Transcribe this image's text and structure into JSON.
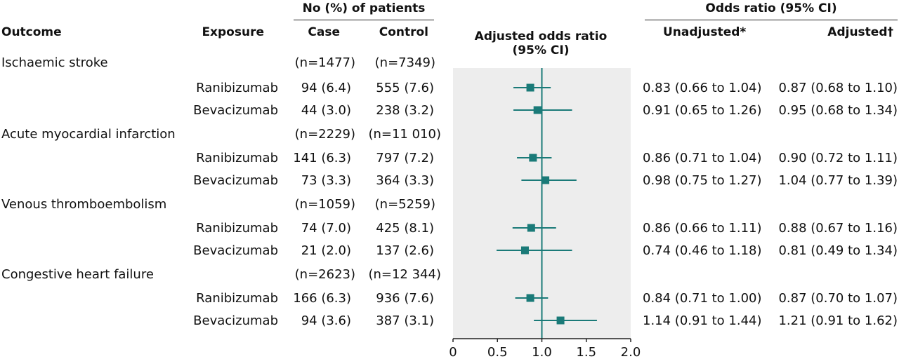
{
  "headers": {
    "outcome": "Outcome",
    "exposure": "Exposure",
    "patients_group": "No (%) of patients",
    "case": "Case",
    "control": "Control",
    "plot_title_line1": "Adjusted odds ratio",
    "plot_title_line2": "(95% CI)",
    "or_group": "Odds ratio (95% CI)",
    "unadjusted": "Unadjusted*",
    "adjusted": "Adjusted†"
  },
  "groups": [
    {
      "outcome": "Ischaemic stroke",
      "n_case": "(n=1477)",
      "n_control": "(n=7349)"
    },
    {
      "outcome": "Acute myocardial infarction",
      "n_case": "(n=2229)",
      "n_control": "(n=11 010)"
    },
    {
      "outcome": "Venous thromboembolism",
      "n_case": "(n=1059)",
      "n_control": "(n=5259)"
    },
    {
      "outcome": "Congestive heart failure",
      "n_case": "(n=2623)",
      "n_control": "(n=12 344)"
    }
  ],
  "rows": [
    {
      "exposure": "Ranibizumab",
      "case": "94 (6.4)",
      "control": "555 (7.6)",
      "unadjusted": "0.83 (0.66 to 1.04)",
      "adjusted": "0.87 (0.68 to 1.10)"
    },
    {
      "exposure": "Bevacizumab",
      "case": "44 (3.0)",
      "control": "238 (3.2)",
      "unadjusted": "0.91 (0.65 to 1.26)",
      "adjusted": "0.95 (0.68 to 1.34)"
    },
    {
      "exposure": "Ranibizumab",
      "case": "141 (6.3)",
      "control": "797 (7.2)",
      "unadjusted": "0.86 (0.71 to 1.04)",
      "adjusted": "0.90 (0.72 to 1.11)"
    },
    {
      "exposure": "Bevacizumab",
      "case": "73 (3.3)",
      "control": "364 (3.3)",
      "unadjusted": "0.98 (0.75 to 1.27)",
      "adjusted": "1.04 (0.77 to 1.39)"
    },
    {
      "exposure": "Ranibizumab",
      "case": "74 (7.0)",
      "control": "425 (8.1)",
      "unadjusted": "0.86 (0.66 to 1.11)",
      "adjusted": "0.88 (0.67 to 1.16)"
    },
    {
      "exposure": "Bevacizumab",
      "case": "21 (2.0)",
      "control": "137 (2.6)",
      "unadjusted": "0.74 (0.46 to 1.18)",
      "adjusted": "0.81 (0.49 to 1.34)"
    },
    {
      "exposure": "Ranibizumab",
      "case": "166 (6.3)",
      "control": "936 (7.6)",
      "unadjusted": "0.84 (0.71 to 1.00)",
      "adjusted": "0.87 (0.70 to 1.07)"
    },
    {
      "exposure": "Bevacizumab",
      "case": "94 (3.6)",
      "control": "387 (3.1)",
      "unadjusted": "1.14 (0.91 to 1.44)",
      "adjusted": "1.21 (0.91 to 1.62)"
    }
  ],
  "chart_data": {
    "type": "forest",
    "xlim": [
      0,
      2.0
    ],
    "xticks": [
      "0",
      "0.5",
      "1.0",
      "1.5",
      "2.0"
    ],
    "reference_line": 1.0,
    "colors": {
      "marker": "#1a7a78",
      "panel": "#ededed",
      "axis": "#222222"
    },
    "points": [
      {
        "estimate": 0.87,
        "lower": 0.68,
        "upper": 1.1
      },
      {
        "estimate": 0.95,
        "lower": 0.68,
        "upper": 1.34
      },
      {
        "estimate": 0.9,
        "lower": 0.72,
        "upper": 1.11
      },
      {
        "estimate": 1.04,
        "lower": 0.77,
        "upper": 1.39
      },
      {
        "estimate": 0.88,
        "lower": 0.67,
        "upper": 1.16
      },
      {
        "estimate": 0.81,
        "lower": 0.49,
        "upper": 1.34
      },
      {
        "estimate": 0.87,
        "lower": 0.7,
        "upper": 1.07
      },
      {
        "estimate": 1.21,
        "lower": 0.91,
        "upper": 1.62
      }
    ]
  }
}
